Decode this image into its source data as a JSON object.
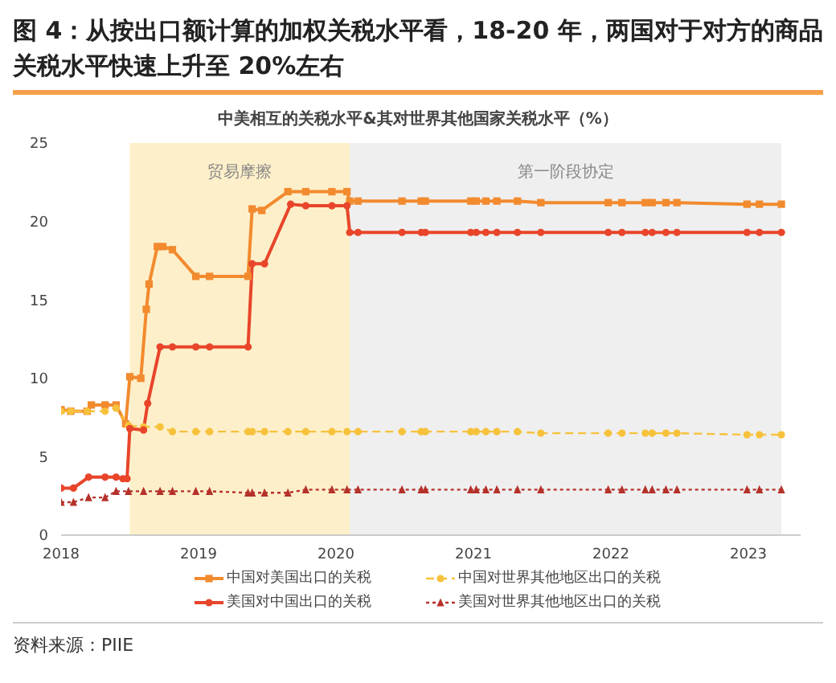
{
  "chart_data": {
    "type": "line",
    "title": "图 4：从按出口额计算的加权关税水平看，18-20 年，两国对于对方的商品关税水平快速上升至 20%左右",
    "subtitle": "中美相互的关税水平&其对世界其他国家关税水平（%）",
    "xlim": [
      2018,
      2023.38
    ],
    "xticks": [
      2018,
      2019,
      2020,
      2021,
      2022,
      2023
    ],
    "ylim": [
      0,
      25
    ],
    "yticks": [
      0,
      5,
      10,
      15,
      20,
      25
    ],
    "grid": false,
    "legend": "bottom",
    "bands": [
      {
        "axis": "x",
        "from": 2018.5,
        "to": 2020.1,
        "label": "贸易摩擦",
        "color": "#fdefc9"
      },
      {
        "axis": "x",
        "from": 2020.1,
        "to": 2023.24,
        "label": "第一阶段协定",
        "color": "#efefef"
      }
    ],
    "series": [
      {
        "name": "中国对美国出口的关税",
        "color": "#f28a2e",
        "marker": "square",
        "line_style": "solid",
        "x": [
          2018.0,
          2018.07,
          2018.19,
          2018.22,
          2018.32,
          2018.4,
          2018.47,
          2018.5,
          2018.58,
          2018.62,
          2018.64,
          2018.7,
          2018.74,
          2018.81,
          2018.98,
          2019.08,
          2019.36,
          2019.39,
          2019.46,
          2019.65,
          2019.78,
          2019.97,
          2020.08,
          2020.1,
          2020.16,
          2020.48,
          2020.62,
          2020.65,
          2020.98,
          2021.02,
          2021.09,
          2021.17,
          2021.32,
          2021.49,
          2021.98,
          2022.08,
          2022.25,
          2022.3,
          2022.4,
          2022.48,
          2022.99,
          2023.08,
          2023.24
        ],
        "values": [
          8.0,
          7.9,
          7.9,
          8.3,
          8.3,
          8.3,
          7.1,
          10.1,
          10.0,
          14.4,
          16.0,
          18.4,
          18.4,
          18.2,
          16.5,
          16.5,
          16.5,
          20.8,
          20.7,
          21.9,
          21.9,
          21.9,
          21.9,
          21.3,
          21.3,
          21.3,
          21.3,
          21.3,
          21.3,
          21.3,
          21.3,
          21.3,
          21.3,
          21.2,
          21.2,
          21.2,
          21.2,
          21.2,
          21.2,
          21.2,
          21.1,
          21.1,
          21.1
        ]
      },
      {
        "name": "中国对世界其他地区出口的关税",
        "color": "#f7c23b",
        "marker": "circle",
        "line_style": "dashed",
        "x": [
          2018.0,
          2018.07,
          2018.19,
          2018.32,
          2018.4,
          2018.49,
          2018.6,
          2018.72,
          2018.81,
          2018.98,
          2019.08,
          2019.36,
          2019.39,
          2019.48,
          2019.65,
          2019.78,
          2019.97,
          2020.08,
          2020.16,
          2020.48,
          2020.62,
          2020.65,
          2020.98,
          2021.02,
          2021.09,
          2021.17,
          2021.32,
          2021.49,
          2021.98,
          2022.08,
          2022.25,
          2022.3,
          2022.4,
          2022.48,
          2022.99,
          2023.08,
          2023.24
        ],
        "values": [
          7.9,
          7.9,
          7.9,
          7.9,
          8.1,
          7.0,
          6.9,
          6.9,
          6.6,
          6.6,
          6.6,
          6.6,
          6.6,
          6.6,
          6.6,
          6.6,
          6.6,
          6.6,
          6.6,
          6.6,
          6.6,
          6.6,
          6.6,
          6.6,
          6.6,
          6.6,
          6.6,
          6.5,
          6.5,
          6.5,
          6.5,
          6.5,
          6.5,
          6.5,
          6.4,
          6.4,
          6.4
        ]
      },
      {
        "name": "美国对中国出口的关税",
        "color": "#e8452a",
        "marker": "circle",
        "line_style": "solid",
        "x": [
          2018.0,
          2018.09,
          2018.2,
          2018.32,
          2018.4,
          2018.45,
          2018.48,
          2018.5,
          2018.6,
          2018.63,
          2018.72,
          2018.81,
          2018.98,
          2019.08,
          2019.36,
          2019.39,
          2019.48,
          2019.67,
          2019.78,
          2019.97,
          2020.08,
          2020.1,
          2020.16,
          2020.48,
          2020.62,
          2020.65,
          2020.98,
          2021.02,
          2021.09,
          2021.17,
          2021.32,
          2021.49,
          2021.98,
          2022.08,
          2022.25,
          2022.3,
          2022.4,
          2022.48,
          2022.99,
          2023.08,
          2023.24
        ],
        "values": [
          3.0,
          3.0,
          3.7,
          3.7,
          3.7,
          3.6,
          3.6,
          6.8,
          6.7,
          8.4,
          12.0,
          12.0,
          12.0,
          12.0,
          12.0,
          17.3,
          17.3,
          21.1,
          21.0,
          21.0,
          21.0,
          19.3,
          19.3,
          19.3,
          19.3,
          19.3,
          19.3,
          19.3,
          19.3,
          19.3,
          19.3,
          19.3,
          19.3,
          19.3,
          19.3,
          19.3,
          19.3,
          19.3,
          19.3,
          19.3,
          19.3
        ]
      },
      {
        "name": "美国对世界其他地区出口的关税",
        "color": "#b5312a",
        "marker": "triangle",
        "line_style": "dotted",
        "x": [
          2018.0,
          2018.09,
          2018.2,
          2018.32,
          2018.4,
          2018.49,
          2018.6,
          2018.72,
          2018.81,
          2018.98,
          2019.08,
          2019.36,
          2019.39,
          2019.48,
          2019.65,
          2019.78,
          2019.97,
          2020.08,
          2020.16,
          2020.48,
          2020.62,
          2020.65,
          2020.98,
          2021.02,
          2021.09,
          2021.17,
          2021.32,
          2021.49,
          2021.98,
          2022.08,
          2022.25,
          2022.3,
          2022.4,
          2022.48,
          2022.99,
          2023.08,
          2023.24
        ],
        "values": [
          2.1,
          2.1,
          2.4,
          2.4,
          2.8,
          2.8,
          2.8,
          2.8,
          2.8,
          2.8,
          2.8,
          2.7,
          2.7,
          2.7,
          2.7,
          2.9,
          2.9,
          2.9,
          2.9,
          2.9,
          2.9,
          2.9,
          2.9,
          2.9,
          2.9,
          2.9,
          2.9,
          2.9,
          2.9,
          2.9,
          2.9,
          2.9,
          2.9,
          2.9,
          2.9,
          2.9,
          2.9
        ]
      }
    ],
    "annotations": [
      "资料来源：PIIE"
    ]
  }
}
